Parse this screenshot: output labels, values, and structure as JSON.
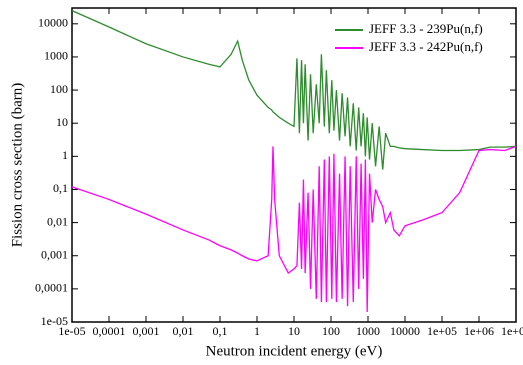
{
  "chart_data": {
    "type": "line",
    "xlabel": "Neutron incident energy (eV)",
    "ylabel": "Fission cross section (barn)",
    "xscale": "log",
    "yscale": "log",
    "legend": "upper right",
    "x": [
      1e-05,
      0.0001,
      0.001,
      0.01,
      0.05,
      0.1,
      0.2,
      0.3,
      0.4,
      0.6,
      1,
      2,
      2.5,
      2.7,
      3,
      4,
      7,
      10,
      12,
      14,
      16,
      18,
      20,
      24,
      28,
      33,
      40,
      48,
      55,
      66,
      75,
      90,
      105,
      120,
      140,
      170,
      200,
      240,
      280,
      330,
      400,
      480,
      560,
      650,
      750,
      850,
      950,
      1100,
      1300,
      1600,
      2000,
      2500,
      3000,
      4000,
      5000,
      7000,
      10000.0,
      30000.0,
      100000.0,
      300000.0,
      1000000.0,
      2000000.0,
      5000000.0,
      10000000.0
    ],
    "series": [
      {
        "name": "JEFF 3.3 - 239Pu(n,f)",
        "color": "#2e8b2e",
        "values": [
          25000,
          8000,
          2500,
          1000,
          600,
          500,
          1200,
          3000,
          800,
          200,
          70,
          30,
          25,
          22,
          20,
          15,
          10,
          8,
          900,
          5,
          800,
          10,
          600,
          3,
          300,
          5,
          150,
          10,
          1200,
          8,
          400,
          5,
          200,
          6,
          100,
          3,
          80,
          4,
          60,
          2,
          40,
          1.5,
          30,
          2,
          20,
          1,
          15,
          0.8,
          10,
          0.5,
          8,
          0.4,
          5,
          2,
          2,
          1.8,
          1.7,
          1.6,
          1.5,
          1.5,
          1.6,
          1.9,
          1.9,
          2
        ]
      },
      {
        "name": "JEFF 3.3 - 242Pu(n,f)",
        "color": "#ff00ff",
        "values": [
          0.12,
          0.05,
          0.018,
          0.006,
          0.003,
          0.002,
          0.0015,
          0.0012,
          0.001,
          0.0008,
          0.0007,
          0.001,
          0.05,
          2,
          0.05,
          0.001,
          0.0003,
          0.0004,
          0.0005,
          0.04,
          0.0004,
          0.2,
          0.0003,
          0.08,
          0.0001,
          0.1,
          5e-05,
          0.5,
          4e-05,
          0.8,
          4e-05,
          1,
          5e-05,
          1.2,
          4e-05,
          0.3,
          5e-05,
          1,
          3e-05,
          0.5,
          4e-05,
          1,
          0.0001,
          0.6,
          0.0002,
          0.8,
          2e-05,
          0.3,
          0.01,
          0.1,
          0.05,
          0.03,
          0.01,
          0.02,
          0.006,
          0.004,
          0.008,
          0.012,
          0.02,
          0.08,
          1.5,
          1.6,
          1.5,
          2
        ]
      }
    ],
    "xlim": [
      1e-05,
      10000000.0
    ],
    "ylim": [
      1e-05,
      30000
    ],
    "xticks": [
      {
        "value": 1e-05,
        "label": "1e-05"
      },
      {
        "value": 0.0001,
        "label": "0,0001"
      },
      {
        "value": 0.001,
        "label": "0,001"
      },
      {
        "value": 0.01,
        "label": "0,01"
      },
      {
        "value": 0.1,
        "label": "0,1"
      },
      1,
      10,
      100,
      1000,
      10000,
      {
        "value": 100000,
        "label": "1e+05"
      },
      {
        "value": 1000000,
        "label": "1e+06"
      },
      {
        "value": 10000000,
        "label": "1e+07"
      }
    ],
    "yticks": [
      {
        "value": 1e-05,
        "label": "1e-05"
      },
      {
        "value": 0.0001,
        "label": "0,0001"
      },
      {
        "value": 0.001,
        "label": "0,001"
      },
      {
        "value": 0.01,
        "label": "0,01"
      },
      {
        "value": 0.1,
        "label": "0,1"
      },
      1,
      10,
      100,
      1000,
      10000
    ]
  }
}
